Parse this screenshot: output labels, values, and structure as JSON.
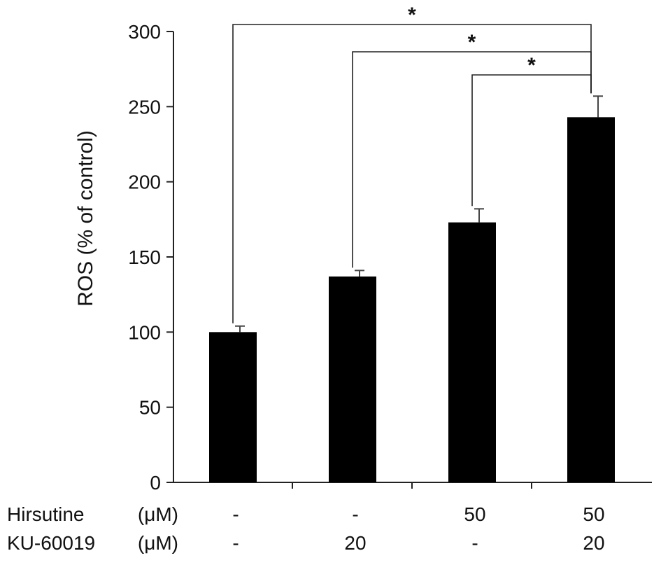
{
  "chart_data": {
    "type": "bar",
    "title": "",
    "ylabel": "ROS (% of control)",
    "xlabel": "",
    "ylim": [
      0,
      300
    ],
    "yticks": [
      0,
      50,
      100,
      150,
      200,
      250,
      300
    ],
    "categories": [
      "-/-",
      "-/20",
      "50/-",
      "50/20"
    ],
    "values": [
      100,
      137,
      173,
      243
    ],
    "errors": [
      4,
      4,
      9,
      14
    ],
    "bar_color": "#000000",
    "treatment_rows": [
      {
        "name": "Hirsutine",
        "unit": "(μM)",
        "values": [
          "-",
          "-",
          "50",
          "50"
        ]
      },
      {
        "name": "KU-60019",
        "unit": "(μM)",
        "values": [
          "-",
          "20",
          "-",
          "20"
        ]
      }
    ],
    "significance": [
      {
        "from": 0,
        "to": 3,
        "label": "*"
      },
      {
        "from": 1,
        "to": 3,
        "label": "*"
      },
      {
        "from": 2,
        "to": 3,
        "label": "*"
      }
    ]
  }
}
